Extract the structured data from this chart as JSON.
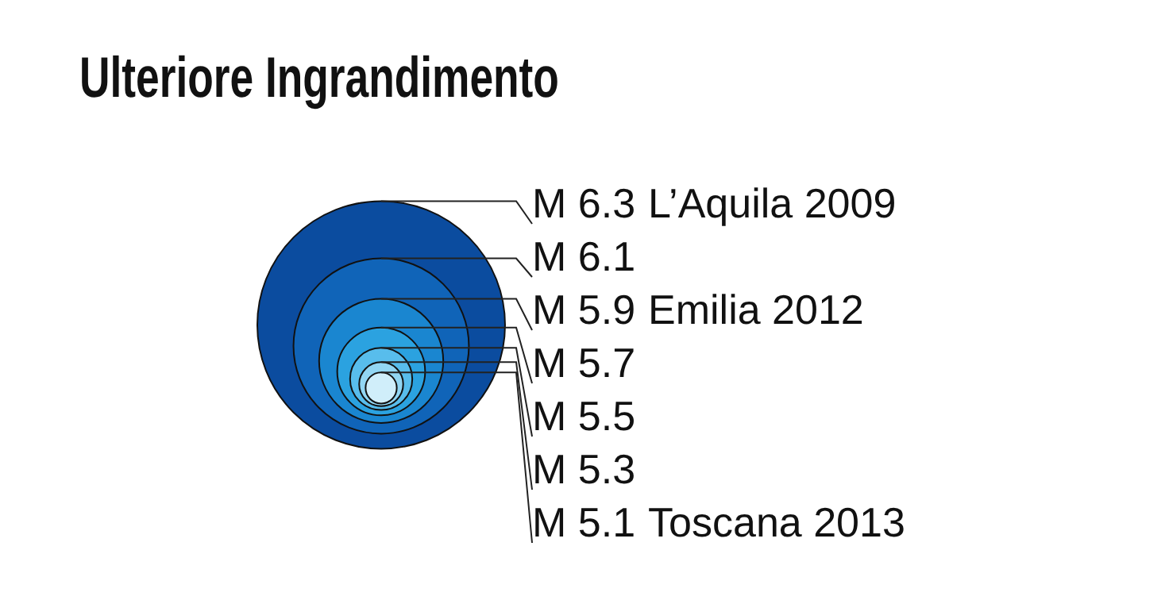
{
  "chart_data": {
    "type": "other",
    "title": "Ulteriore Ingrandimento",
    "categories": [
      "L’Aquila 2009",
      null,
      "Emilia 2012",
      null,
      null,
      null,
      "Toscana 2013"
    ],
    "values": [
      6.3,
      6.1,
      5.9,
      5.7,
      5.5,
      5.3,
      5.1
    ],
    "value_labels": [
      "M 6.3",
      "M 6.1",
      "M 5.9",
      "M 5.7",
      "M 5.5",
      "M 5.3",
      "M 5.1"
    ],
    "colors": [
      "#0b4c9f",
      "#1064b8",
      "#1a86d0",
      "#2ba2e0",
      "#58bdec",
      "#92d6f3",
      "#d0eefa"
    ]
  }
}
